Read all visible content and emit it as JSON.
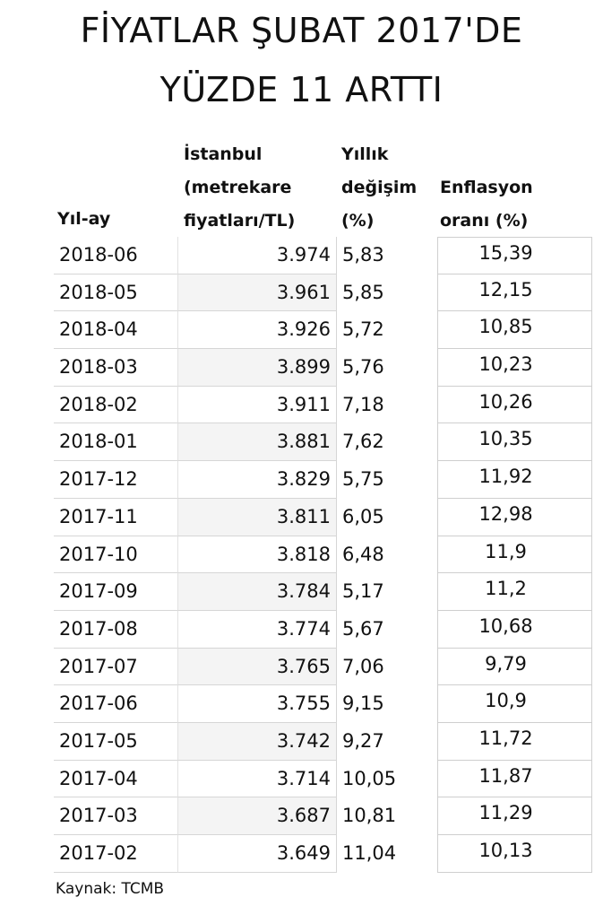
{
  "title": {
    "line1": "FİYATLAR ŞUBAT 2017'DE",
    "line2": "YÜZDE 11 ARTTI"
  },
  "headers": {
    "month": [
      "Yıl-ay"
    ],
    "price": [
      "İstanbul",
      "(metrekare",
      "fiyatları/TL)"
    ],
    "change": [
      "Yıllık",
      "değişim",
      "(%)"
    ],
    "inflation": [
      "Enflasyon",
      "oranı (%)"
    ]
  },
  "rows": [
    {
      "month": "2018-06",
      "price": "3.974",
      "change": "5,83",
      "inflation": "15,39"
    },
    {
      "month": "2018-05",
      "price": "3.961",
      "change": "5,85",
      "inflation": "12,15"
    },
    {
      "month": "2018-04",
      "price": "3.926",
      "change": "5,72",
      "inflation": "10,85"
    },
    {
      "month": "2018-03",
      "price": "3.899",
      "change": "5,76",
      "inflation": "10,23"
    },
    {
      "month": "2018-02",
      "price": "3.911",
      "change": "7,18",
      "inflation": "10,26"
    },
    {
      "month": "2018-01",
      "price": "3.881",
      "change": "7,62",
      "inflation": "10,35"
    },
    {
      "month": "2017-12",
      "price": "3.829",
      "change": "5,75",
      "inflation": "11,92"
    },
    {
      "month": "2017-11",
      "price": "3.811",
      "change": "6,05",
      "inflation": "12,98"
    },
    {
      "month": "2017-10",
      "price": "3.818",
      "change": "6,48",
      "inflation": "11,9"
    },
    {
      "month": "2017-09",
      "price": "3.784",
      "change": "5,17",
      "inflation": "11,2"
    },
    {
      "month": "2017-08",
      "price": "3.774",
      "change": "5,67",
      "inflation": "10,68"
    },
    {
      "month": "2017-07",
      "price": "3.765",
      "change": "7,06",
      "inflation": "9,79"
    },
    {
      "month": "2017-06",
      "price": "3.755",
      "change": "9,15",
      "inflation": "10,9"
    },
    {
      "month": "2017-05",
      "price": "3.742",
      "change": "9,27",
      "inflation": "11,72"
    },
    {
      "month": "2017-04",
      "price": "3.714",
      "change": "10,05",
      "inflation": "11,87"
    },
    {
      "month": "2017-03",
      "price": "3.687",
      "change": "10,81",
      "inflation": "11,29"
    },
    {
      "month": "2017-02",
      "price": "3.649",
      "change": "11,04",
      "inflation": "10,13"
    }
  ],
  "source": "Kaynak: TCMB"
}
